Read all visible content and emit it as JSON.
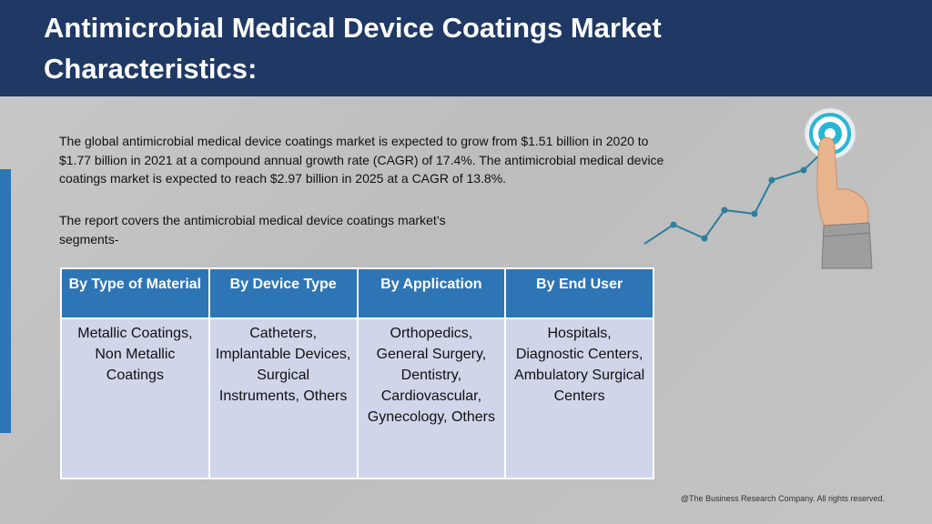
{
  "header": {
    "title": "Antimicrobial Medical Device Coatings Market Characteristics:"
  },
  "body": {
    "paragraph1": "The global antimicrobial medical device coatings market is expected to grow from $1.51 billion in 2020 to $1.77 billion in 2021 at a compound annual growth rate (CAGR) of 17.4%. The antimicrobial medical device coatings market is expected to reach $2.97 billion in 2025 at a CAGR of 13.8%.",
    "paragraph2": "The report covers the antimicrobial medical device coatings market’s segments-"
  },
  "table": {
    "headers": [
      "By Type of Material",
      "By Device Type",
      "By Application",
      "By End User"
    ],
    "cells": [
      "Metallic Coatings, Non Metallic Coatings",
      "Catheters, Implantable Devices, Surgical Instruments, Others",
      "Orthopedics, General Surgery, Dentistry, Cardiovascular, Gynecology, Others",
      "Hospitals, Diagnostic Centers, Ambulatory Surgical Centers"
    ]
  },
  "illustration": {
    "icon": "target-growth-hand-icon"
  },
  "footer": {
    "copyright": "@The Business Research Company. All rights reserved."
  },
  "colors": {
    "header_bg": "#1f3864",
    "accent_blue": "#2e75b6",
    "table_cell_bg": "#d0d5ea",
    "target_cyan": "#29b6d6"
  }
}
